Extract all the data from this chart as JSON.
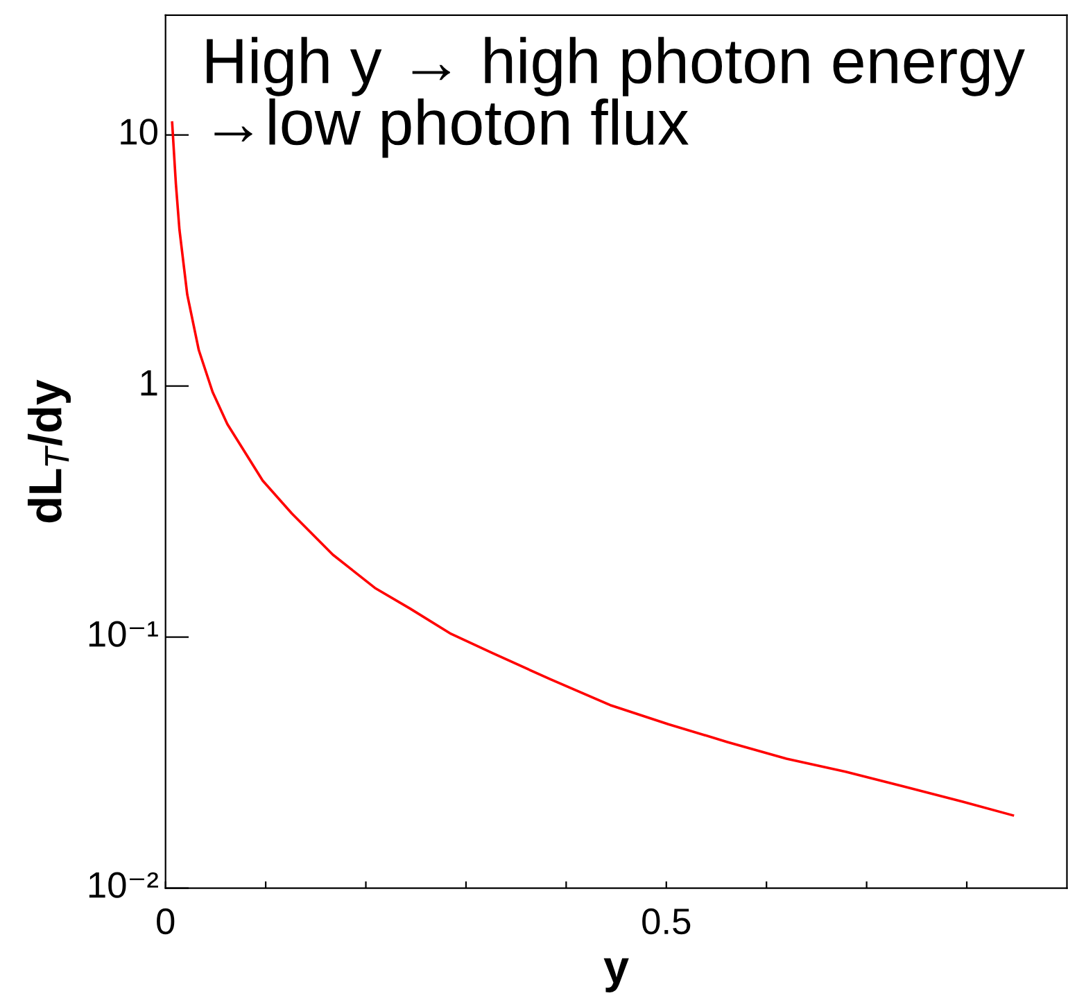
{
  "chart_data": {
    "type": "line",
    "xlabel": "y",
    "ylabel": "dL$_{T}$/dy",
    "annotations": [
      "High y → high photon energy\n→low photon flux"
    ],
    "log": "y",
    "xlim": [
      0,
      0.9
    ],
    "ylim": [
      0.01,
      30
    ],
    "xticks": [
      0,
      {
        "value": 0.1,
        "label": null
      },
      {
        "value": 0.2,
        "label": null
      },
      {
        "value": 0.3,
        "label": null
      },
      {
        "value": 0.4,
        "label": null
      },
      0.5,
      {
        "value": 0.6,
        "label": null
      },
      {
        "value": 0.7,
        "label": null
      },
      {
        "value": 0.8,
        "label": null
      }
    ],
    "yticks": [
      {
        "value": 0.01,
        "label": "10⁻²"
      },
      {
        "value": 0.1,
        "label": "10⁻¹"
      },
      1,
      10
    ],
    "grid": false,
    "legend": false,
    "marker": "none",
    "line_style": "solid",
    "series": [
      {
        "color": "#ff0000",
        "x": [
          0.0066,
          0.0103,
          0.0139,
          0.0217,
          0.0332,
          0.047,
          0.0617,
          0.097,
          0.126,
          0.167,
          0.209,
          0.244,
          0.285,
          0.326,
          0.385,
          0.444,
          0.502,
          0.561,
          0.62,
          0.679,
          0.737,
          0.796,
          0.846
        ],
        "values": [
          11.2,
          6.4,
          4.19,
          2.31,
          1.39,
          0.946,
          0.705,
          0.42,
          0.311,
          0.213,
          0.157,
          0.13,
          0.103,
          0.0865,
          0.0677,
          0.0536,
          0.045,
          0.0382,
          0.0328,
          0.0291,
          0.0254,
          0.0221,
          0.0195
        ]
      }
    ]
  }
}
